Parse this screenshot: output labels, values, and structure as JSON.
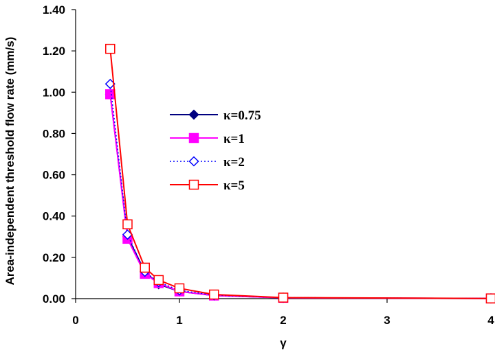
{
  "chart_data": {
    "type": "line",
    "xlabel": "γ",
    "ylabel": "Area-independent threshold flow rate (mm/s)",
    "xlim": [
      0,
      4
    ],
    "ylim": [
      0,
      1.4
    ],
    "x_ticks": [
      "0",
      "1",
      "2",
      "3",
      "4"
    ],
    "y_ticks": [
      "0.00",
      "0.20",
      "0.40",
      "0.60",
      "0.80",
      "1.00",
      "1.20",
      "1.40"
    ],
    "grid": false,
    "legend_position": "center-left",
    "x": [
      0.333,
      0.5,
      0.667,
      0.8,
      1.0,
      1.333,
      2.0,
      4.0
    ],
    "series": [
      {
        "name": "κ=0.75",
        "color": "#000080",
        "marker": "filled-diamond",
        "line": "solid",
        "values": [
          0.99,
          0.3,
          0.13,
          0.07,
          0.035,
          0.015,
          0.004,
          0.001
        ]
      },
      {
        "name": "κ=1",
        "color": "#ff00ff",
        "marker": "filled-square",
        "line": "solid",
        "values": [
          0.99,
          0.29,
          0.12,
          0.075,
          0.035,
          0.015,
          0.004,
          0.001
        ]
      },
      {
        "name": "κ=2",
        "color": "#0000ff",
        "marker": "open-diamond",
        "line": "dotted",
        "values": [
          1.04,
          0.31,
          0.13,
          0.08,
          0.04,
          0.017,
          0.005,
          0.001
        ]
      },
      {
        "name": "κ=5",
        "color": "#ff0000",
        "marker": "open-square",
        "line": "solid",
        "values": [
          1.21,
          0.36,
          0.15,
          0.09,
          0.05,
          0.02,
          0.005,
          0.001
        ]
      }
    ]
  }
}
